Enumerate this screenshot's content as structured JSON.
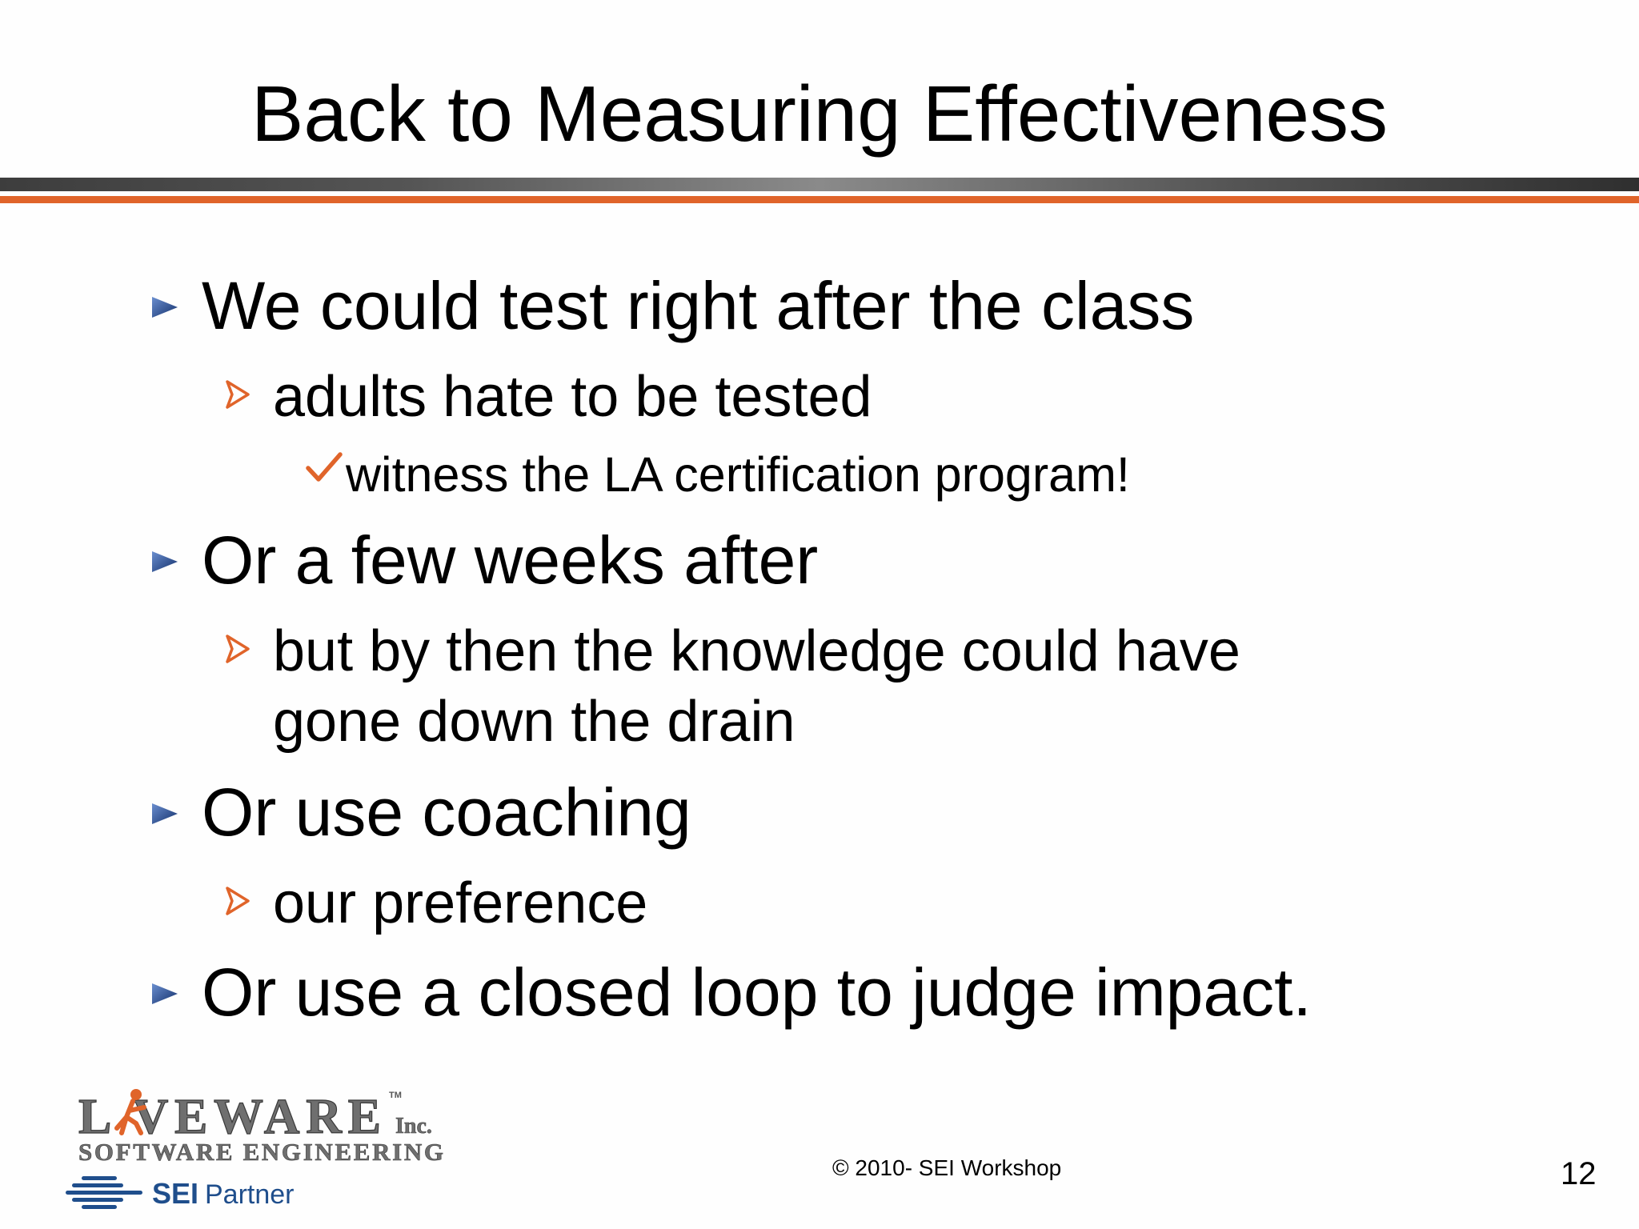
{
  "slide": {
    "title": "Back to Measuring Effectiveness",
    "bullets": [
      {
        "level": 1,
        "text": "We could test right after the class"
      },
      {
        "level": 2,
        "text": "adults hate to be tested"
      },
      {
        "level": 3,
        "text": "witness the LA certification program!"
      },
      {
        "level": 1,
        "text": "Or a few weeks after"
      },
      {
        "level": 2,
        "text": "but by then the knowledge could have\ngone down the drain"
      },
      {
        "level": 1,
        "text": "Or use coaching"
      },
      {
        "level": 2,
        "text": "our preference"
      },
      {
        "level": 1,
        "text": "Or use a closed loop to judge impact."
      }
    ],
    "footer": {
      "copyright": "© 2010- SEI Workshop",
      "page_number": "12"
    },
    "logos": {
      "company_name": "L  VEWARE",
      "company_suffix": "Inc.",
      "trademark": "TM",
      "company_tagline": "SOFTWARE ENGINEERING",
      "partner_bold": "SEI",
      "partner_light": "Partner"
    }
  },
  "colors": {
    "level1_marker": "#1f3b7a",
    "level2_marker": "#e0642a",
    "level3_marker": "#e0642a",
    "rule_orange": "#e0642a",
    "logo_gray": "#6f6f6f",
    "logo_figure": "#e0642a",
    "sei_blue": "#1f4e8c"
  },
  "icons": {
    "level1": "triangle-bullet-icon",
    "level2": "arrowhead-bullet-icon",
    "level3": "checkmark-bullet-icon"
  }
}
